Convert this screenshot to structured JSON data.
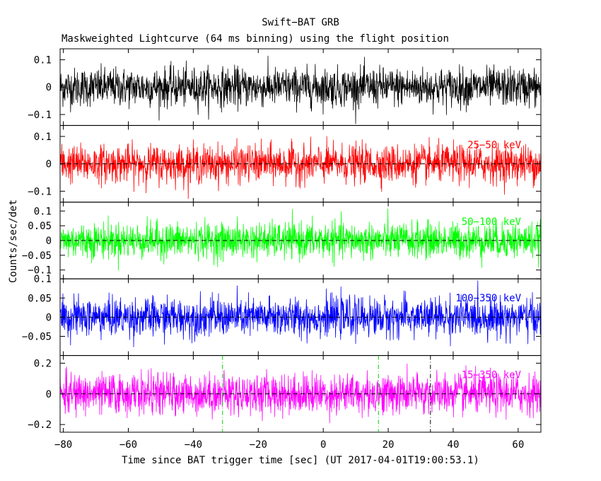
{
  "chart_data": {
    "type": "line",
    "title": "Swift−BAT GRB",
    "subtitle": "Maskweighted Lightcurve (64 ms binning) using the flight position",
    "xlabel": "Time since BAT trigger time [sec] (UT 2017-04-01T19:00:53.1)",
    "ylabel": "Counts/sec/det",
    "xlim": [
      -81,
      67
    ],
    "x_ticks": [
      -80,
      -60,
      -40,
      -20,
      0,
      20,
      40,
      60
    ],
    "x_tick_labels": [
      "−80",
      "−60",
      "−40",
      "−20",
      "0",
      "20",
      "40",
      "60"
    ],
    "grid": false,
    "markers": [
      {
        "x": -31,
        "color": "#00cc00",
        "style": "dash-dot"
      },
      {
        "x": 17,
        "color": "#00cc00",
        "style": "dash-dot"
      },
      {
        "x": 33,
        "color": "#000000",
        "style": "dash-dot"
      }
    ],
    "panels": [
      {
        "series_label": "",
        "color": "#000000",
        "ylim": [
          -0.14,
          0.14
        ],
        "y_ticks": [
          0.1,
          0,
          -0.1
        ],
        "y_tick_labels": [
          "0.1",
          "0",
          "−0.1"
        ],
        "zero_line": false,
        "noise_sigma": 0.035
      },
      {
        "series_label": "25−50 keV",
        "color": "#ff0000",
        "ylim": [
          -0.14,
          0.14
        ],
        "y_ticks": [
          0.1,
          0,
          -0.1
        ],
        "y_tick_labels": [
          "0.1",
          "0",
          "−0.1"
        ],
        "zero_line": true,
        "noise_sigma": 0.034
      },
      {
        "series_label": "50−100 keV",
        "color": "#00ff00",
        "ylim": [
          -0.13,
          0.13
        ],
        "y_ticks": [
          0.1,
          0.05,
          0,
          -0.05,
          -0.1
        ],
        "y_tick_labels": [
          "0.1",
          "0.05",
          "0",
          "−0.05",
          "−0.1"
        ],
        "zero_line": true,
        "noise_sigma": 0.03
      },
      {
        "series_label": "100−350 keV",
        "color": "#0000ff",
        "ylim": [
          -0.1,
          0.1
        ],
        "y_ticks": [
          0.1,
          0.05,
          0,
          -0.05
        ],
        "y_tick_labels": [
          "0.1",
          "0.05",
          "0",
          "−0.05"
        ],
        "zero_line": true,
        "noise_sigma": 0.025
      },
      {
        "series_label": "15−350 keV",
        "color": "#ff00ff",
        "ylim": [
          -0.25,
          0.25
        ],
        "y_ticks": [
          0.2,
          0,
          -0.2
        ],
        "y_tick_labels": [
          "0.2",
          "0",
          "−0.2"
        ],
        "zero_line": true,
        "noise_sigma": 0.065
      }
    ]
  }
}
